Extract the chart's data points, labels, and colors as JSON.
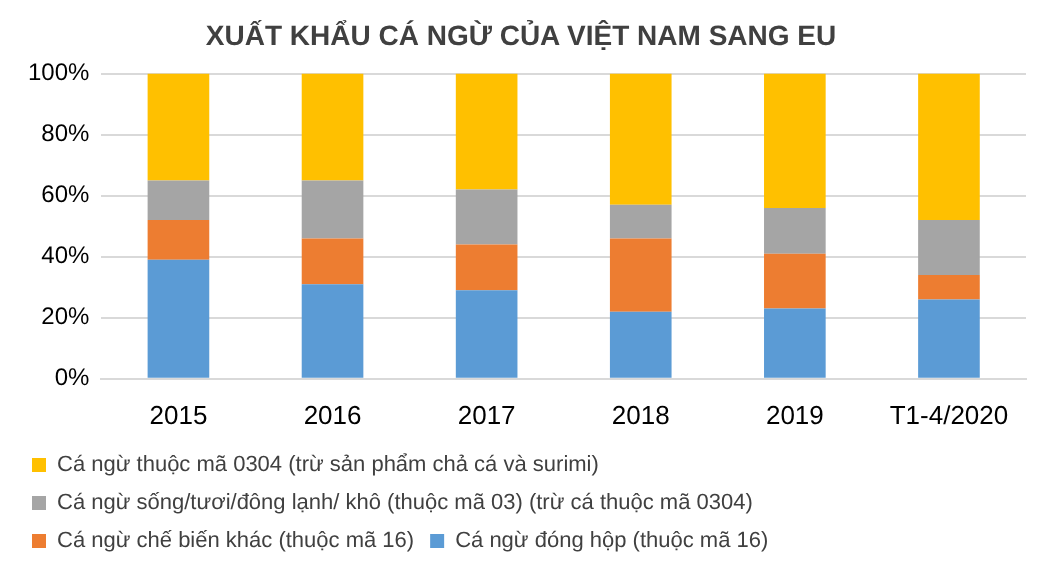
{
  "chart_data": {
    "type": "bar",
    "title": "XUẤT KHẨU CÁ NGỪ CỦA VIỆT NAM SANG EU",
    "stacked": true,
    "categories": [
      "2015",
      "2016",
      "2017",
      "2018",
      "2019",
      "T1-4/2020"
    ],
    "series": [
      {
        "name": "Cá ngừ đóng hộp (thuộc mã 16)",
        "color": "#5b9bd5",
        "values": [
          39,
          31,
          29,
          22,
          23,
          26
        ]
      },
      {
        "name": "Cá ngừ chế biến khác (thuộc mã 16)",
        "color": "#ed7d31",
        "values": [
          13,
          15,
          15,
          24,
          18,
          8
        ]
      },
      {
        "name": "Cá ngừ sống/tươi/đông lạnh/ khô (thuộc mã 03) (trừ cá thuộc mã 0304)",
        "color": "#a5a5a5",
        "values": [
          13,
          19,
          18,
          11,
          15,
          18
        ]
      },
      {
        "name": "Cá ngừ thuộc mã 0304 (trừ sản phẩm chả cá và surimi)",
        "color": "#ffc000",
        "values": [
          35,
          35,
          38,
          43,
          44,
          48
        ]
      }
    ],
    "ylim": [
      0,
      100
    ],
    "yticks": [
      {
        "value": 0,
        "label": "0%"
      },
      {
        "value": 20,
        "label": "20%"
      },
      {
        "value": 40,
        "label": "40%"
      },
      {
        "value": 60,
        "label": "60%"
      },
      {
        "value": 80,
        "label": "80%"
      },
      {
        "value": 100,
        "label": "100%"
      }
    ],
    "grid": "y",
    "legend": "bottom"
  }
}
